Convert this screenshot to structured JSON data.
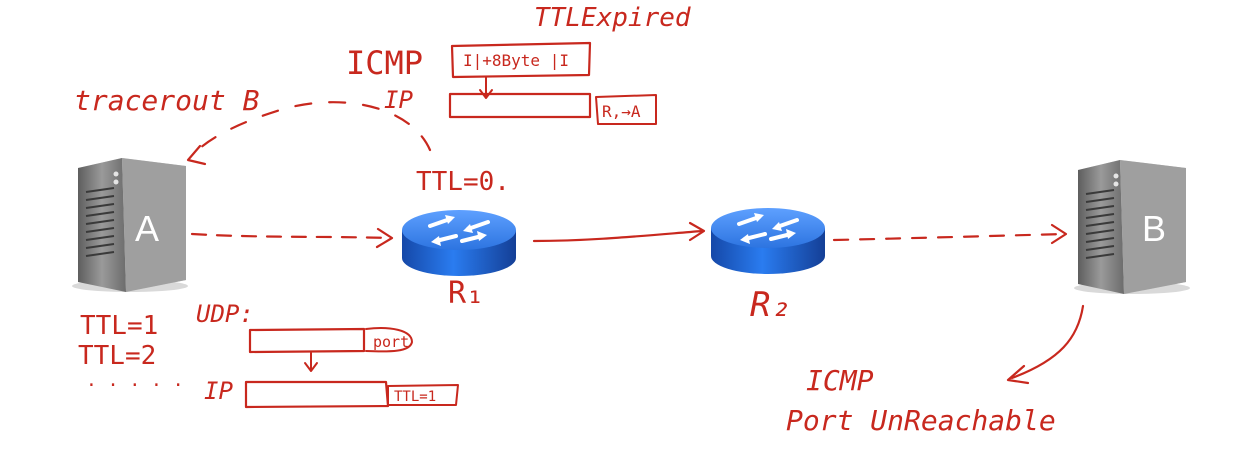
{
  "colors": {
    "ink": "#c8281e",
    "router": "#1f66d8",
    "server": "#8d8d8d"
  },
  "hosts": {
    "a_label": "A",
    "b_label": "B"
  },
  "routers": {
    "r1_label": "R₁",
    "r2_label": "R₂"
  },
  "notes": {
    "traceroute": "tracerout B",
    "ttl_expired": "TTLExpired",
    "icmp_top": "ICMP",
    "ip_top": "IP",
    "icmp_box": "I|+8Byte |I",
    "r1_to_a": "R,→A",
    "ttl_zero": "TTL=0.",
    "ttl_1": "TTL=1",
    "ttl_2": "TTL=2",
    "ellipsis": ". . . . .",
    "udp": "UDP:",
    "port": "port",
    "ip_bottom": "IP",
    "ttl_box": "TTL=1",
    "icmp_bottom": "ICMP",
    "port_unreachable": "Port UnReachable"
  }
}
